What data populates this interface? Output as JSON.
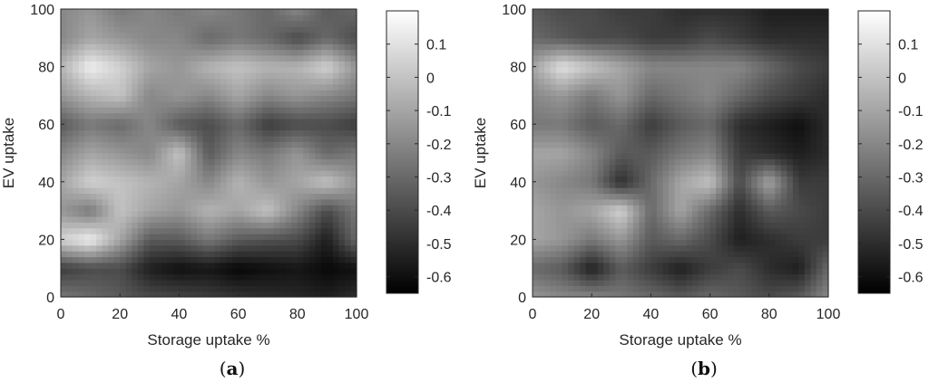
{
  "colors": {
    "colormap_low": "#000000",
    "colormap_high": "#ffffff",
    "axis": "#262626"
  },
  "chart_data": [
    {
      "type": "heatmap",
      "panel_label": {
        "open": "(",
        "letter": "a",
        "close": ")"
      },
      "xlabel": "Storage uptake %",
      "ylabel": "EV uptake",
      "xlim": [
        0,
        100
      ],
      "ylim": [
        0,
        100
      ],
      "xticks": [
        "0",
        "20",
        "40",
        "60",
        "80",
        "100"
      ],
      "yticks": [
        "0",
        "20",
        "40",
        "60",
        "80",
        "100"
      ],
      "grid": false,
      "x": [
        0,
        10,
        20,
        30,
        40,
        50,
        60,
        70,
        80,
        90,
        100
      ],
      "y": [
        0,
        10,
        20,
        30,
        40,
        50,
        60,
        70,
        80,
        90,
        100
      ],
      "z": [
        [
          -0.25,
          -0.3,
          -0.35,
          -0.4,
          -0.42,
          -0.45,
          -0.48,
          -0.5,
          -0.52,
          -0.55,
          -0.5
        ],
        [
          -0.45,
          -0.4,
          -0.4,
          -0.55,
          -0.6,
          -0.58,
          -0.63,
          -0.6,
          -0.58,
          -0.62,
          -0.6
        ],
        [
          0.05,
          0.15,
          -0.1,
          -0.35,
          -0.35,
          -0.25,
          -0.35,
          -0.38,
          -0.4,
          -0.55,
          -0.3
        ],
        [
          -0.15,
          -0.25,
          0.0,
          -0.1,
          -0.15,
          -0.05,
          -0.1,
          0.0,
          -0.2,
          -0.4,
          -0.25
        ],
        [
          -0.1,
          0.05,
          0.0,
          -0.05,
          -0.1,
          -0.2,
          -0.05,
          -0.15,
          -0.1,
          0.0,
          -0.15
        ],
        [
          -0.2,
          -0.1,
          -0.15,
          -0.2,
          0.0,
          -0.35,
          -0.2,
          -0.25,
          -0.15,
          -0.3,
          -0.25
        ],
        [
          -0.35,
          -0.25,
          -0.3,
          -0.2,
          -0.35,
          -0.4,
          -0.3,
          -0.45,
          -0.4,
          -0.4,
          -0.45
        ],
        [
          -0.15,
          -0.05,
          0.0,
          -0.2,
          -0.15,
          -0.2,
          -0.1,
          -0.2,
          -0.15,
          -0.2,
          -0.25
        ],
        [
          -0.05,
          0.15,
          0.05,
          -0.1,
          -0.15,
          -0.05,
          0.0,
          -0.05,
          -0.05,
          0.05,
          -0.15
        ],
        [
          -0.2,
          -0.1,
          -0.15,
          -0.2,
          -0.2,
          -0.3,
          -0.25,
          -0.3,
          -0.4,
          -0.3,
          -0.4
        ],
        [
          -0.2,
          -0.15,
          -0.25,
          -0.2,
          -0.25,
          -0.2,
          -0.25,
          -0.3,
          -0.2,
          -0.35,
          -0.3
        ]
      ],
      "colorbar": {
        "min": -0.65,
        "max": 0.2,
        "ticks": [
          "0.1",
          "0",
          "-0.1",
          "-0.2",
          "-0.3",
          "-0.4",
          "-0.5",
          "-0.6"
        ]
      }
    },
    {
      "type": "heatmap",
      "panel_label": {
        "open": "(",
        "letter": "b",
        "close": ")"
      },
      "xlabel": "Storage uptake %",
      "ylabel": "EV uptake",
      "xlim": [
        0,
        100
      ],
      "ylim": [
        0,
        100
      ],
      "xticks": [
        "0",
        "20",
        "40",
        "60",
        "80",
        "100"
      ],
      "yticks": [
        "0",
        "20",
        "40",
        "60",
        "80",
        "100"
      ],
      "grid": false,
      "x": [
        0,
        10,
        20,
        30,
        40,
        50,
        60,
        70,
        80,
        90,
        100
      ],
      "y": [
        0,
        10,
        20,
        30,
        40,
        50,
        60,
        70,
        80,
        90,
        100
      ],
      "z": [
        [
          -0.15,
          -0.2,
          -0.2,
          -0.25,
          -0.3,
          -0.35,
          -0.3,
          -0.35,
          -0.4,
          -0.35,
          -0.2
        ],
        [
          -0.3,
          -0.35,
          -0.55,
          -0.35,
          -0.45,
          -0.55,
          -0.45,
          -0.4,
          -0.5,
          -0.55,
          -0.3
        ],
        [
          -0.1,
          -0.15,
          -0.25,
          -0.15,
          -0.35,
          -0.3,
          -0.4,
          -0.55,
          -0.5,
          -0.45,
          -0.45
        ],
        [
          -0.1,
          -0.15,
          -0.1,
          0.05,
          -0.3,
          -0.1,
          -0.3,
          -0.5,
          -0.35,
          -0.4,
          -0.45
        ],
        [
          -0.15,
          -0.2,
          -0.25,
          -0.5,
          -0.3,
          -0.1,
          0.0,
          -0.4,
          -0.1,
          -0.45,
          -0.45
        ],
        [
          -0.1,
          -0.1,
          -0.2,
          -0.35,
          -0.35,
          -0.25,
          -0.2,
          -0.45,
          -0.5,
          -0.55,
          -0.5
        ],
        [
          -0.25,
          -0.25,
          -0.35,
          -0.3,
          -0.45,
          -0.35,
          -0.3,
          -0.5,
          -0.55,
          -0.6,
          -0.5
        ],
        [
          -0.2,
          -0.15,
          -0.25,
          -0.15,
          -0.3,
          -0.25,
          -0.2,
          -0.3,
          -0.4,
          -0.45,
          -0.5
        ],
        [
          -0.1,
          0.1,
          0.0,
          -0.1,
          -0.2,
          -0.2,
          -0.2,
          -0.2,
          -0.3,
          -0.4,
          -0.45
        ],
        [
          -0.3,
          -0.35,
          -0.4,
          -0.4,
          -0.45,
          -0.45,
          -0.4,
          -0.45,
          -0.5,
          -0.5,
          -0.5
        ],
        [
          -0.35,
          -0.4,
          -0.4,
          -0.45,
          -0.45,
          -0.5,
          -0.5,
          -0.5,
          -0.55,
          -0.55,
          -0.55
        ]
      ],
      "colorbar": {
        "min": -0.65,
        "max": 0.2,
        "ticks": [
          "0.1",
          "0",
          "-0.1",
          "-0.2",
          "-0.3",
          "-0.4",
          "-0.5",
          "-0.6"
        ]
      }
    }
  ]
}
